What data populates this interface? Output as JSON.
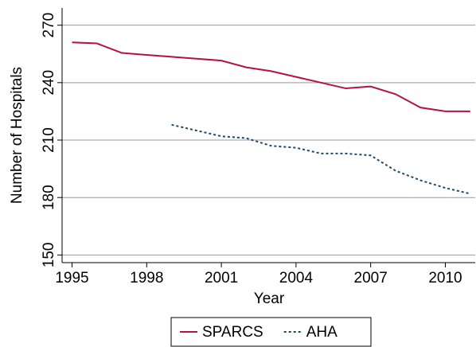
{
  "chart_data": {
    "type": "line",
    "x_label": "Year",
    "y_label": "Number of Hospitals",
    "x": [
      1995,
      1996,
      1997,
      1998,
      1999,
      2000,
      2001,
      2002,
      2003,
      2004,
      2005,
      2006,
      2007,
      2008,
      2009,
      2010,
      2011
    ],
    "series": [
      {
        "name": "SPARCS",
        "color": "#b5123f",
        "dash": "solid",
        "values": [
          261,
          260.5,
          255.5,
          254.5,
          253.5,
          252.5,
          251.5,
          248,
          246,
          243,
          240,
          237,
          238,
          234,
          227,
          225,
          225
        ]
      },
      {
        "name": "AHA",
        "color": "#1a476f",
        "dash": "dotted",
        "values": [
          null,
          null,
          null,
          null,
          218,
          215,
          212,
          211,
          207,
          206,
          203,
          203,
          202,
          194,
          189,
          185,
          182
        ]
      }
    ],
    "xlim": [
      1994.6,
      2011.2
    ],
    "xticks": [
      1995,
      1998,
      2001,
      2004,
      2007,
      2010
    ],
    "ylim": [
      146,
      279
    ],
    "yticks": [
      150,
      180,
      210,
      240,
      270
    ],
    "grid": true,
    "legend": "bottom"
  }
}
